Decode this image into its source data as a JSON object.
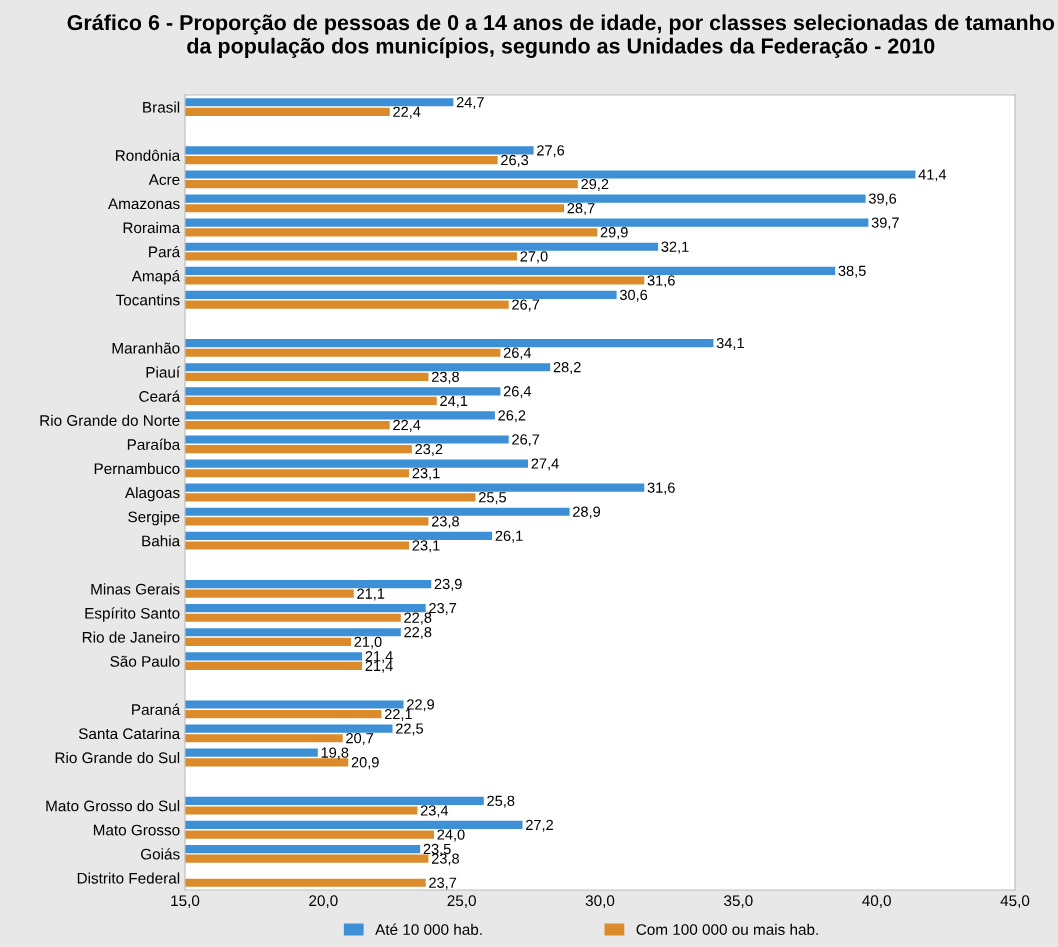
{
  "chart_data": {
    "type": "bar",
    "orientation": "horizontal",
    "title": "Gráfico 6 - Proporção de pessoas de 0 a 14 anos de idade, por classes selecionadas de tamanho da população dos municípios, segundo as Unidades da Federação - 2010",
    "categories": [
      "Brasil",
      null,
      "Rondônia",
      "Acre",
      "Amazonas",
      "Roraima",
      "Pará",
      "Amapá",
      "Tocantins",
      null,
      "Maranhão",
      "Piauí",
      "Ceará",
      "Rio Grande do Norte",
      "Paraíba",
      "Pernambuco",
      "Alagoas",
      "Sergipe",
      "Bahia",
      null,
      "Minas Gerais",
      "Espírito Santo",
      "Rio de Janeiro",
      "São Paulo",
      null,
      "Paraná",
      "Santa Catarina",
      "Rio Grande do Sul",
      null,
      "Mato Grosso do Sul",
      "Mato Grosso",
      "Goiás",
      "Distrito Federal"
    ],
    "series": [
      {
        "name": "Até 10 000 hab.",
        "color": "#3d8fd6",
        "values": [
          24.7,
          null,
          27.6,
          41.4,
          39.6,
          39.7,
          32.1,
          38.5,
          30.6,
          null,
          34.1,
          28.2,
          26.4,
          26.2,
          26.7,
          27.4,
          31.6,
          28.9,
          26.1,
          null,
          23.9,
          23.7,
          22.8,
          21.4,
          null,
          22.9,
          22.5,
          19.8,
          null,
          25.8,
          27.2,
          23.5,
          null
        ],
        "value_labels": [
          "24,7",
          null,
          "27,6",
          "41,4",
          "39,6",
          "39,7",
          "32,1",
          "38,5",
          "30,6",
          null,
          "34,1",
          "28,2",
          "26,4",
          "26,2",
          "26,7",
          "27,4",
          "31,6",
          "28,9",
          "26,1",
          null,
          "23,9",
          "23,7",
          "22,8",
          "21,4",
          null,
          "22,9",
          "22,5",
          "19,8",
          null,
          "25,8",
          "27,2",
          "23,5",
          null
        ]
      },
      {
        "name": "Com 100 000 ou mais hab.",
        "color": "#dc8b2b",
        "values": [
          22.4,
          null,
          26.3,
          29.2,
          28.7,
          29.9,
          27.0,
          31.6,
          26.7,
          null,
          26.4,
          23.8,
          24.1,
          22.4,
          23.2,
          23.1,
          25.5,
          23.8,
          23.1,
          null,
          21.1,
          22.8,
          21.0,
          21.4,
          null,
          22.1,
          20.7,
          20.9,
          null,
          23.4,
          24.0,
          23.8,
          23.7
        ],
        "value_labels": [
          "22,4",
          null,
          "26,3",
          "29,2",
          "28,7",
          "29,9",
          "27,0",
          "31,6",
          "26,7",
          null,
          "26,4",
          "23,8",
          "24,1",
          "22,4",
          "23,2",
          "23,1",
          "25,5",
          "23,8",
          "23,1",
          null,
          "21,1",
          "22,8",
          "21,0",
          "21,4",
          null,
          "22,1",
          "20,7",
          "20,9",
          null,
          "23,4",
          "24,0",
          "23,8",
          "23,7"
        ]
      }
    ],
    "xlim": [
      15,
      45
    ],
    "xticks": [
      {
        "value": 15,
        "label": "15,0"
      },
      {
        "value": 20,
        "label": "20,0"
      },
      {
        "value": 25,
        "label": "25,0"
      },
      {
        "value": 30,
        "label": "30,0"
      },
      {
        "value": 35,
        "label": "35,0"
      },
      {
        "value": 40,
        "label": "40,0"
      },
      {
        "value": 45,
        "label": "45,0"
      }
    ],
    "grid": false,
    "legend": "bottom"
  }
}
